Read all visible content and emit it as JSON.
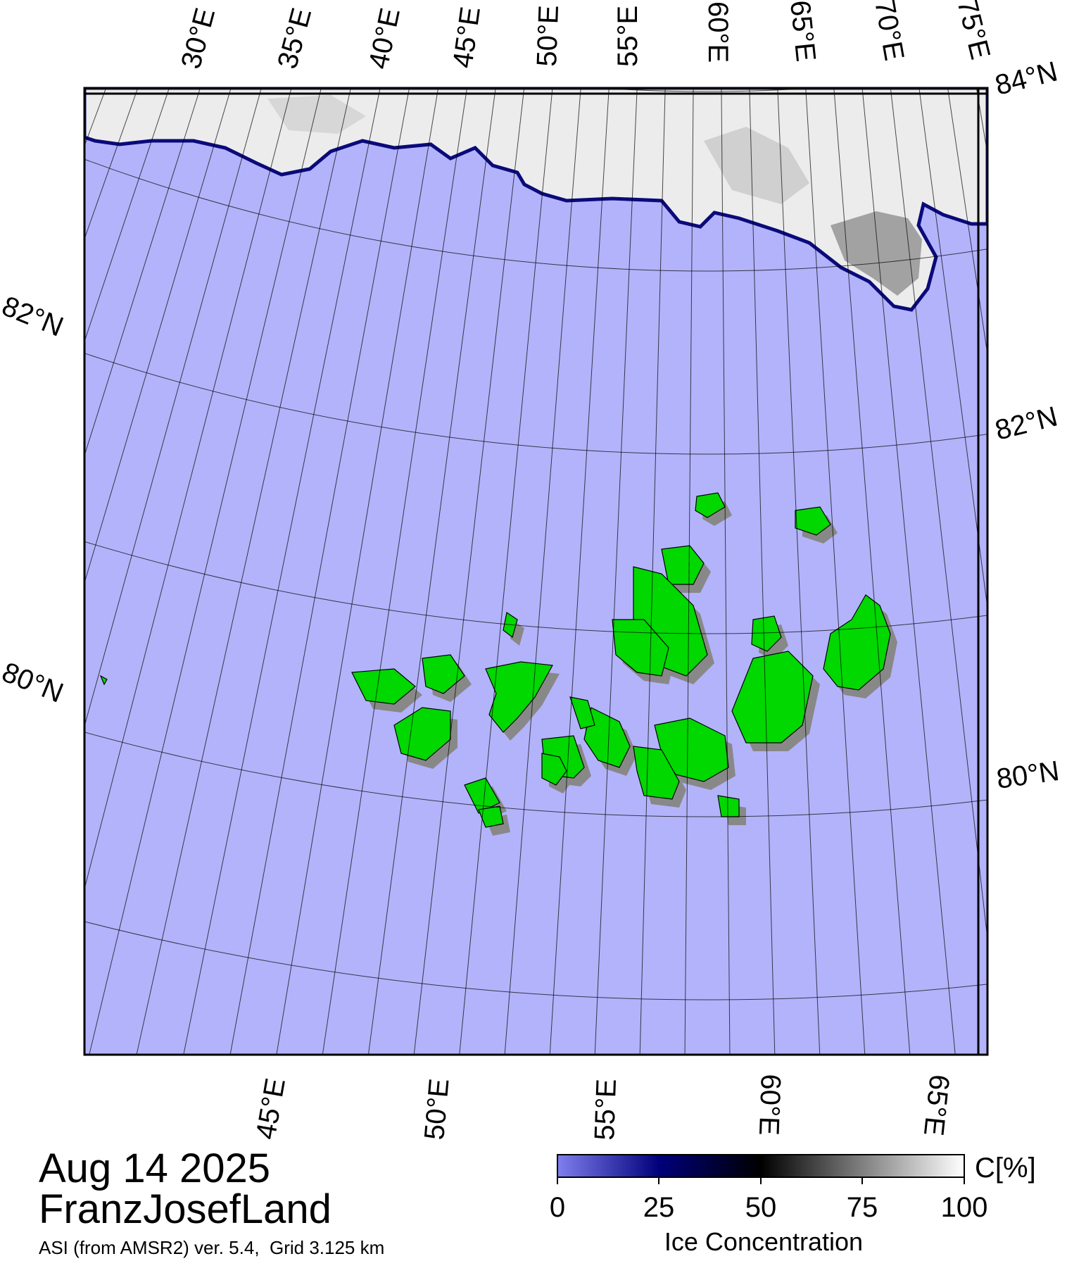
{
  "map": {
    "date": "Aug 14 2025",
    "region": "FranzJosefLand",
    "product_line": "ASI (from AMSR2) ver. 5.4,  Grid 3.125 km",
    "colors": {
      "ocean": "#b3b3fb",
      "land": "#00d800",
      "land_shadow": "#888888",
      "ice_edge": "#0a0a7a",
      "graticule": "#000000"
    },
    "top_lon_labels": [
      "30°E",
      "35°E",
      "40°E",
      "45°E",
      "50°E",
      "55°E",
      "60°E",
      "65°E",
      "70°E",
      "75°E"
    ],
    "bottom_lon_labels": [
      "45°E",
      "50°E",
      "55°E",
      "60°E",
      "65°E"
    ],
    "left_lat_labels": [
      "82°N",
      "80°N"
    ],
    "right_lat_labels": [
      "84°N",
      "82°N",
      "80°N"
    ]
  },
  "colorbar": {
    "unit": "C[%]",
    "title": "Ice Concentration",
    "ticks": [
      "0",
      "25",
      "50",
      "75",
      "100"
    ],
    "stops": [
      "#7f7fef",
      "#00007a",
      "#000000",
      "#808080",
      "#ffffff"
    ]
  }
}
